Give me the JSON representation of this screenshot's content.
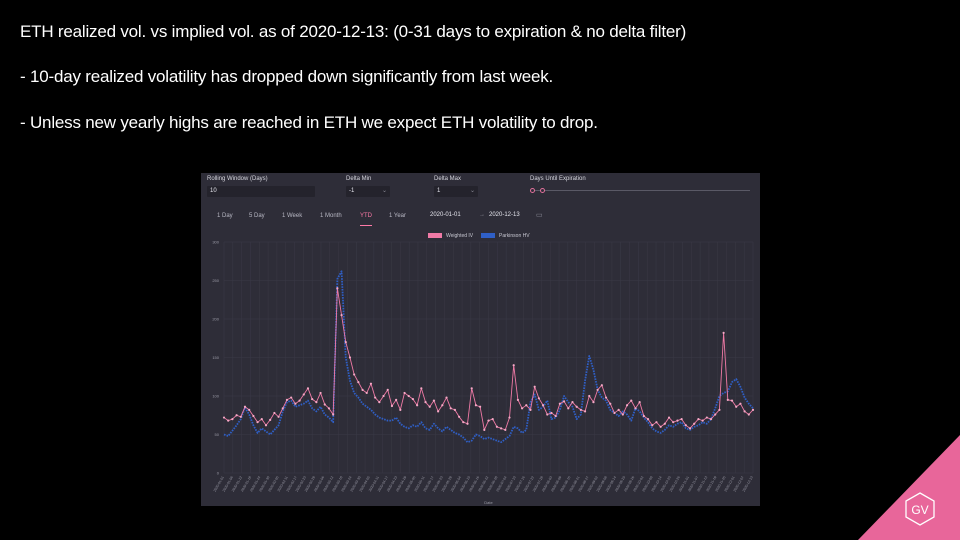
{
  "slide": {
    "line1": "ETH realized vol. vs implied vol. as of 2020-12-13: (0-31 days to expiration & no delta filter)",
    "line2": "- 10-day realized volatility has dropped down significantly from last week.",
    "line3": "- Unless new yearly highs are reached in ETH we expect ETH volatility to drop."
  },
  "controls": {
    "rolling_window_label": "Rolling Window (Days)",
    "rolling_window_value": "10",
    "delta_min_label": "Delta Min",
    "delta_min_value": "-1",
    "delta_max_label": "Delta Max",
    "delta_max_value": "1",
    "days_until_expiration_label": "Days Until Expiration",
    "ranges": [
      "1 Day",
      "5 Day",
      "1 Week",
      "1 Month",
      "YTD",
      "1 Year"
    ],
    "active_range": "YTD",
    "start_date": "2020-01-01",
    "date_separator": "→",
    "end_date": "2020-12-13"
  },
  "colors": {
    "weighted_iv": "#f07aa6",
    "parkinson_hv": "#2f5fc6",
    "panel_bg": "#2e2d38",
    "accent": "#e8669a"
  },
  "chart_data": {
    "type": "line",
    "x_start": "2020-01-01",
    "x_end": "2020-12-13",
    "xlabel": "Date",
    "ylabel": "",
    "ylim": [
      0,
      300
    ],
    "yticks": [
      0,
      50,
      100,
      150,
      200,
      250,
      300
    ],
    "grid": true,
    "legend_position": "top-center",
    "series": [
      {
        "name": "Weighted IV",
        "values": [
          72,
          68,
          70,
          75,
          73,
          86,
          82,
          74,
          66,
          70,
          62,
          69,
          78,
          73,
          84,
          95,
          98,
          90,
          94,
          102,
          110,
          96,
          92,
          104,
          89,
          84,
          76,
          240,
          205,
          170,
          150,
          128,
          118,
          108,
          104,
          116,
          98,
          92,
          100,
          108,
          87,
          95,
          82,
          104,
          100,
          96,
          88,
          110,
          92,
          86,
          94,
          80,
          88,
          98,
          84,
          82,
          73,
          66,
          64,
          110,
          88,
          86,
          56,
          68,
          70,
          60,
          58,
          56,
          72,
          140,
          95,
          84,
          88,
          82,
          112,
          97,
          88,
          76,
          78,
          74,
          90,
          93,
          84,
          92,
          86,
          82,
          80,
          100,
          92,
          108,
          114,
          98,
          90,
          78,
          82,
          76,
          88,
          94,
          84,
          92,
          74,
          70,
          62,
          66,
          60,
          64,
          72,
          66,
          68,
          70,
          62,
          58,
          64,
          70,
          68,
          72,
          70,
          76,
          82,
          182,
          95,
          94,
          86,
          90,
          80,
          76,
          82
        ]
      },
      {
        "name": "Parkinson HV",
        "values": [
          50,
          48,
          55,
          62,
          70,
          85,
          76,
          62,
          52,
          58,
          54,
          50,
          56,
          62,
          80,
          92,
          94,
          86,
          88,
          90,
          94,
          84,
          80,
          86,
          76,
          72,
          66,
          252,
          262,
          150,
          120,
          104,
          98,
          90,
          86,
          82,
          76,
          72,
          70,
          68,
          68,
          72,
          64,
          60,
          58,
          62,
          60,
          66,
          58,
          56,
          64,
          58,
          54,
          60,
          56,
          52,
          50,
          46,
          40,
          42,
          50,
          48,
          44,
          46,
          44,
          42,
          40,
          44,
          48,
          60,
          58,
          52,
          56,
          92,
          102,
          82,
          86,
          94,
          70,
          72,
          82,
          100,
          92,
          86,
          70,
          76,
          120,
          152,
          134,
          108,
          98,
          94,
          82,
          78,
          74,
          80,
          76,
          68,
          84,
          80,
          72,
          66,
          58,
          54,
          52,
          56,
          62,
          60,
          64,
          66,
          58,
          56,
          60,
          62,
          66,
          64,
          70,
          84,
          100,
          104,
          106,
          118,
          122,
          112,
          98,
          90,
          84
        ]
      }
    ]
  }
}
